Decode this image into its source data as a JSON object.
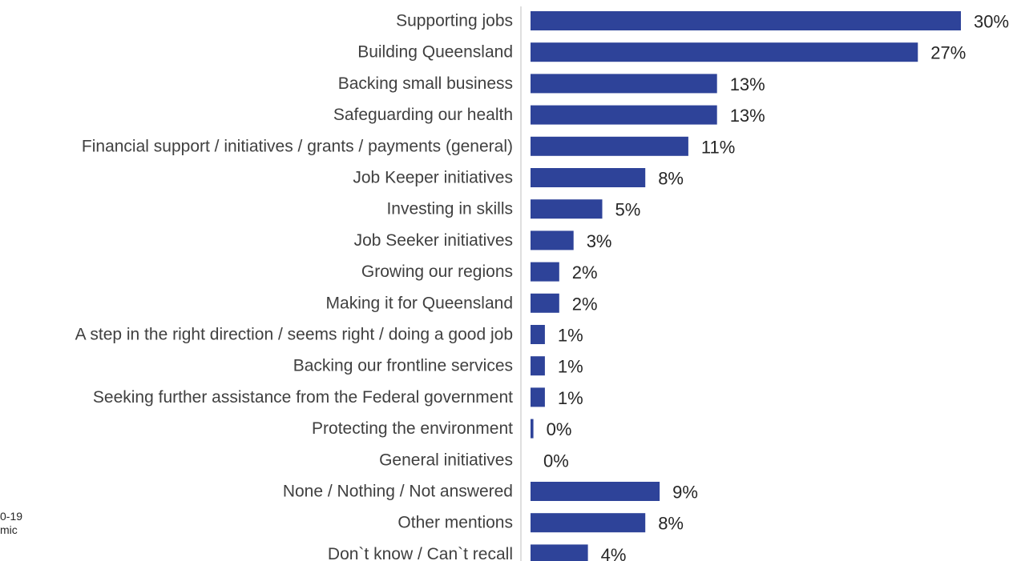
{
  "chart_data": {
    "type": "bar",
    "orientation": "horizontal",
    "categories": [
      "Supporting jobs",
      "Building Queensland",
      "Backing small business",
      "Safeguarding our health",
      "Financial support / initiatives / grants / payments (general)",
      "Job Keeper initiatives",
      "Investing in skills",
      "Job Seeker initiatives",
      "Growing our regions",
      "Making it for Queensland",
      "A step in the right direction / seems right / doing a good job",
      "Backing our frontline services",
      "Seeking further assistance from the Federal government",
      "Protecting the environment",
      "General initiatives",
      "None / Nothing / Not answered",
      "Other mentions",
      "Don`t know / Can`t recall"
    ],
    "values": [
      30,
      27,
      13,
      13,
      11,
      8,
      5,
      3,
      2,
      2,
      1,
      1,
      1,
      0.2,
      0,
      9,
      8,
      4
    ],
    "value_labels": [
      "30%",
      "27%",
      "13%",
      "13%",
      "11%",
      "8%",
      "5%",
      "3%",
      "2%",
      "2%",
      "1%",
      "1%",
      "1%",
      "0%",
      "0%",
      "9%",
      "8%",
      "4%"
    ],
    "xlim": [
      0,
      30
    ],
    "bar_color": "#2E4399",
    "axis_color": "#BFBFBF",
    "grid": false,
    "legend": "none"
  },
  "side_note": {
    "line1": "0-19",
    "line2": "mic"
  }
}
